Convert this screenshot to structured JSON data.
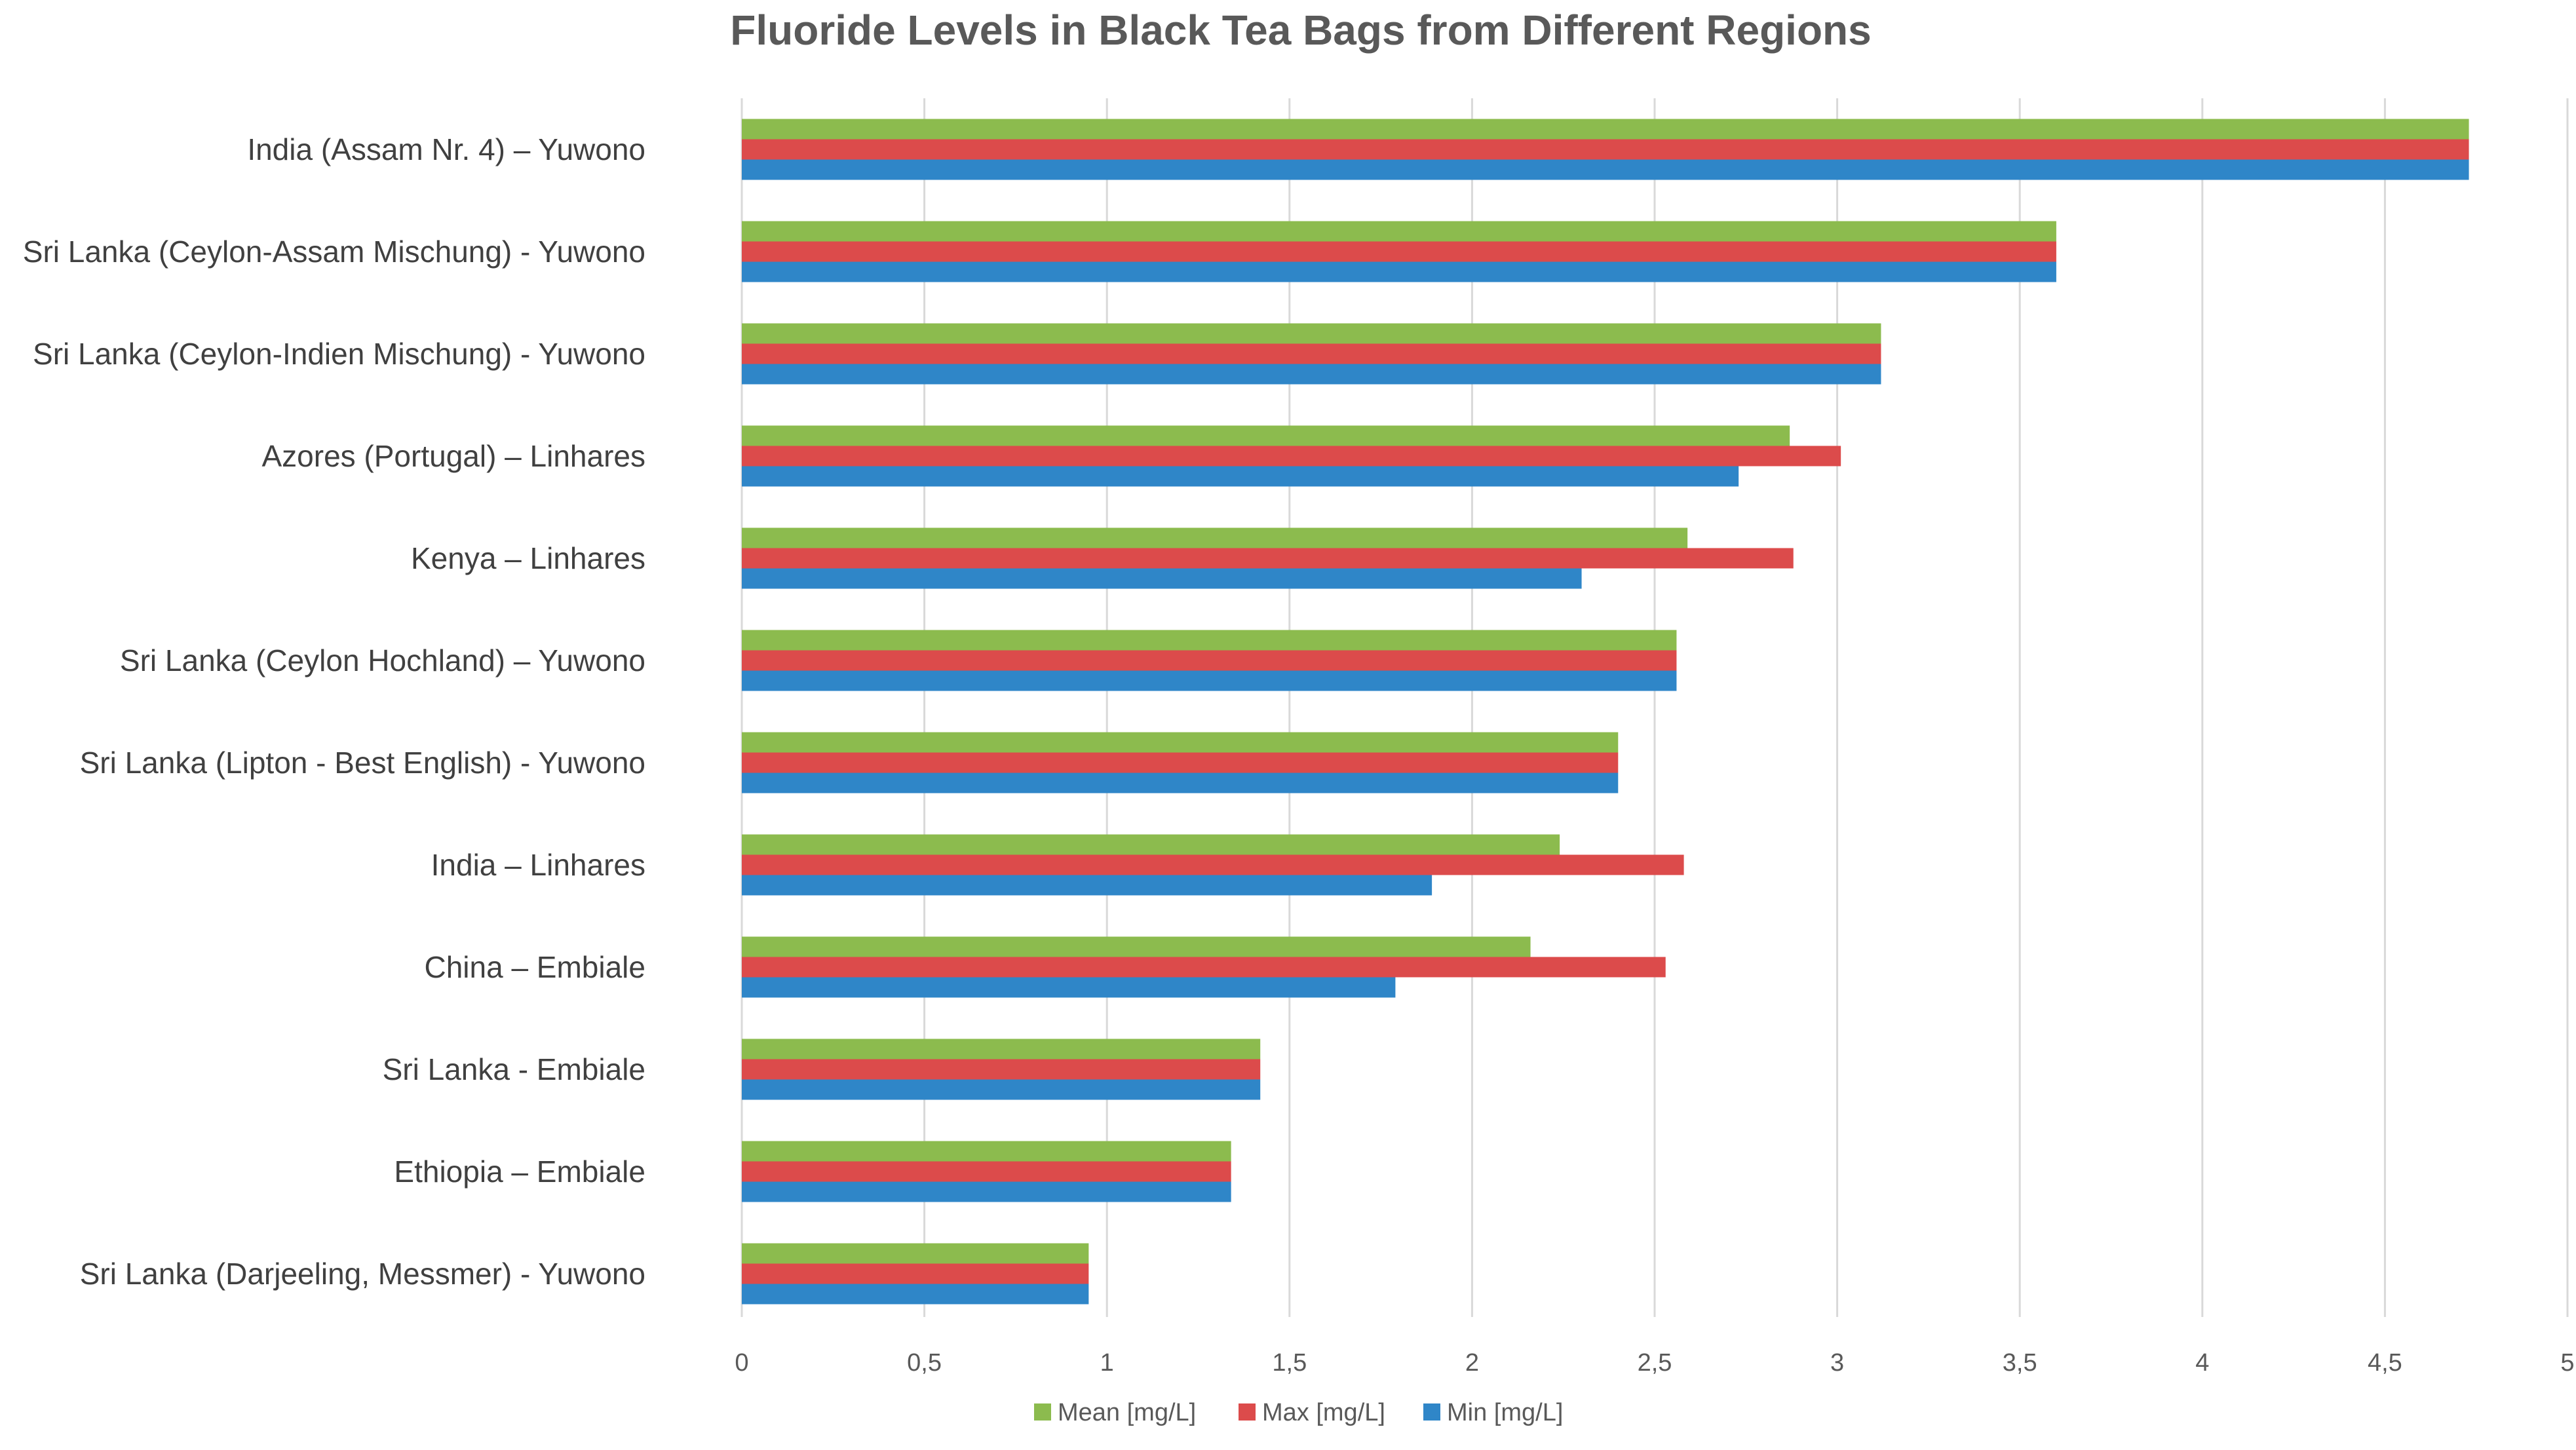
{
  "chart_data": {
    "type": "bar",
    "orientation": "horizontal",
    "title": "Fluoride Levels in Black Tea Bags from Different Regions",
    "xlabel": "",
    "ylabel": "",
    "xlim": [
      0,
      5
    ],
    "ticks": [
      "0",
      "0,5",
      "1",
      "1,5",
      "2",
      "2,5",
      "3",
      "3,5",
      "4",
      "4,5",
      "5"
    ],
    "tick_values": [
      0,
      0.5,
      1,
      1.5,
      2,
      2.5,
      3,
      3.5,
      4,
      4.5,
      5
    ],
    "grid": true,
    "legend_position": "bottom",
    "categories": [
      "India (Assam Nr. 4) – Yuwono",
      "Sri Lanka (Ceylon-Assam Mischung) - Yuwono",
      "Sri Lanka (Ceylon-Indien Mischung) - Yuwono",
      "Azores (Portugal) – Linhares",
      "Kenya – Linhares",
      "Sri Lanka (Ceylon Hochland) – Yuwono",
      "Sri Lanka (Lipton - Best English) - Yuwono",
      "India – Linhares",
      "China – Embiale",
      "Sri Lanka - Embiale",
      "Ethiopia – Embiale",
      "Sri Lanka (Darjeeling, Messmer) - Yuwono"
    ],
    "series": [
      {
        "name": "Mean [mg/L]",
        "color": "#8cbb4e",
        "values": [
          4.73,
          3.6,
          3.12,
          2.87,
          2.59,
          2.56,
          2.4,
          2.24,
          2.16,
          1.42,
          1.34,
          0.95
        ]
      },
      {
        "name": "Max [mg/L]",
        "color": "#dc4b4b",
        "values": [
          4.73,
          3.6,
          3.12,
          3.01,
          2.88,
          2.56,
          2.4,
          2.58,
          2.53,
          1.42,
          1.34,
          0.95
        ]
      },
      {
        "name": "Min [mg/L]",
        "color": "#2f86c8",
        "values": [
          4.73,
          3.6,
          3.12,
          2.73,
          2.3,
          2.56,
          2.4,
          1.89,
          1.79,
          1.42,
          1.34,
          0.95
        ]
      }
    ]
  }
}
